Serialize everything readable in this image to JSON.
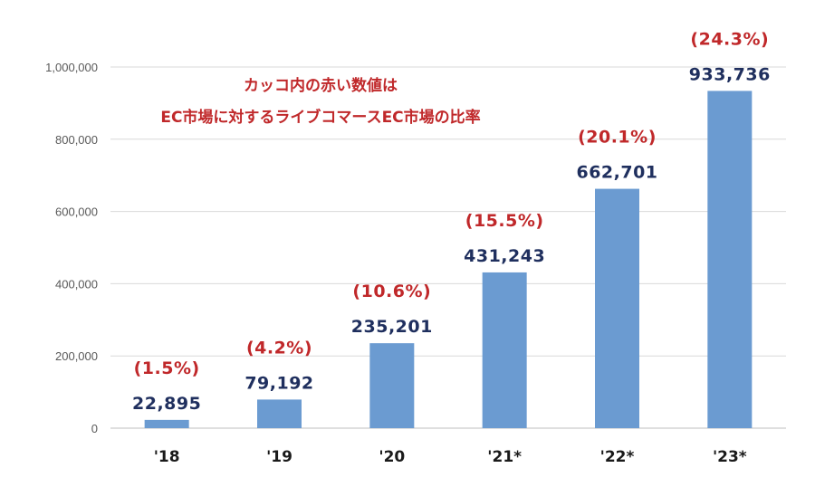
{
  "chart_data": {
    "type": "bar",
    "title": "",
    "xlabel": "",
    "ylabel": "",
    "ylim": [
      0,
      1000000
    ],
    "yticks": [
      0,
      200000,
      400000,
      600000,
      800000,
      1000000
    ],
    "ytick_labels": [
      "0",
      "200,000",
      "400,000",
      "600,000",
      "800,000",
      "1,000,000"
    ],
    "grid": true,
    "categories": [
      "'18",
      "'19",
      "'20",
      "'21*",
      "'22*",
      "'23*"
    ],
    "values": [
      22895,
      79192,
      235201,
      431243,
      662701,
      933736
    ],
    "value_labels": [
      "22,895",
      "79,192",
      "235,201",
      "431,243",
      "662,701",
      "933,736"
    ],
    "ratio_labels": [
      "(1.5%)",
      "(4.2%)",
      "(10.6%)",
      "(15.5%)",
      "(20.1%)",
      "(24.3%)"
    ],
    "annotation": {
      "line1": "カッコ内の赤い数値は",
      "line2": "EC市場に対するライブコマースEC市場の比率"
    },
    "colors": {
      "bar": "#6b9bd1",
      "value_label": "#1f2f5e",
      "ratio_label": "#c0282a",
      "grid": "#d9d9d9"
    }
  }
}
